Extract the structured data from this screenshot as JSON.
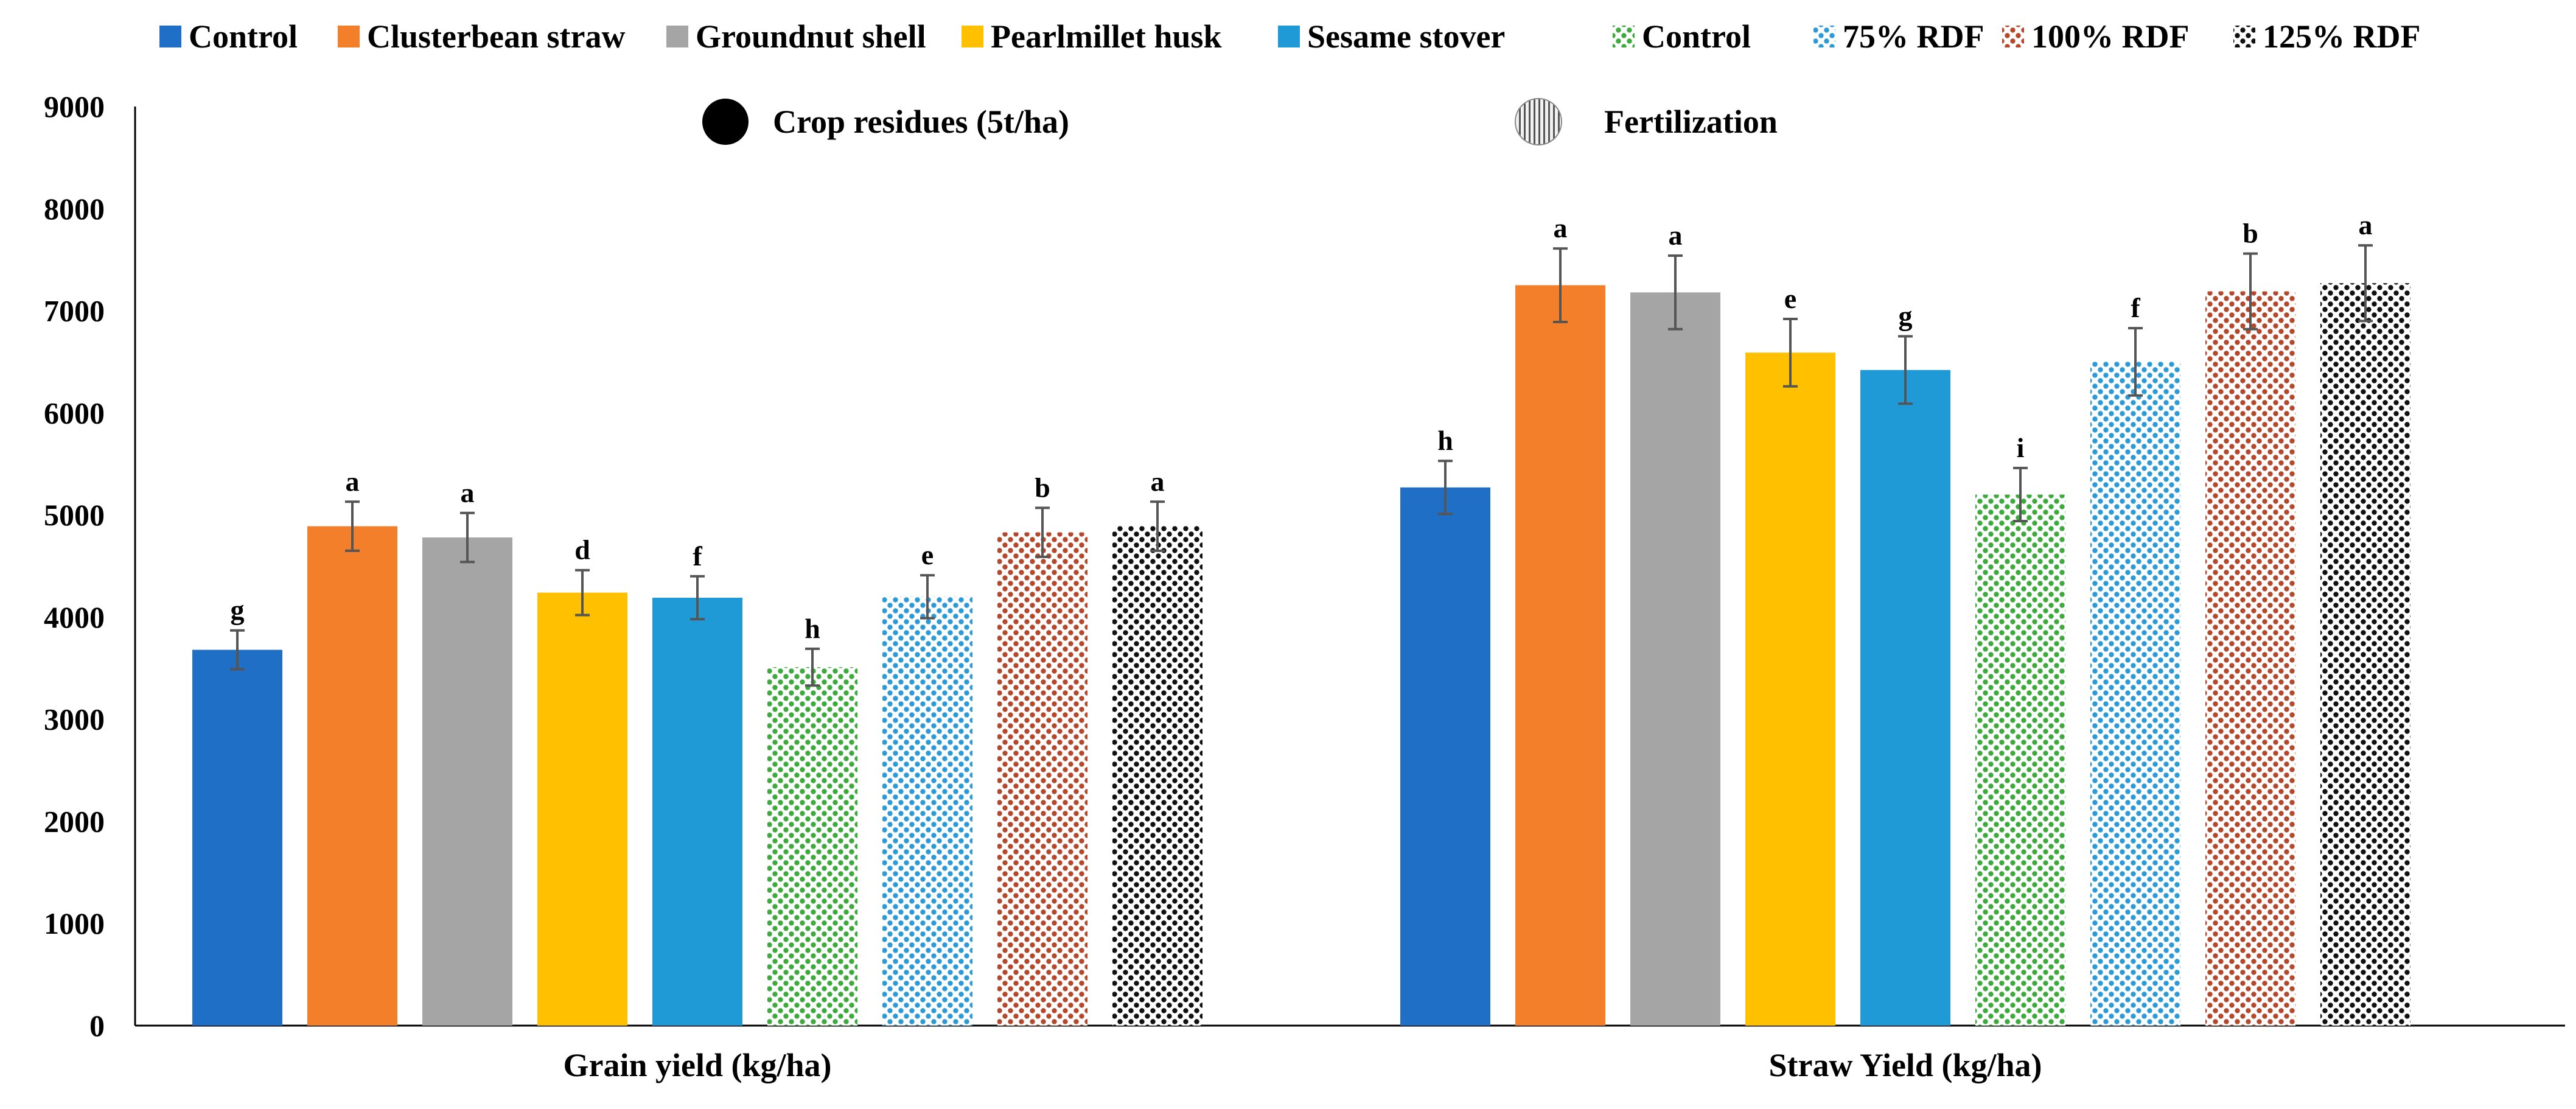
{
  "chart_data": {
    "type": "bar",
    "title": "",
    "xlabel": "",
    "ylabel": "",
    "ylim": [
      0,
      9000
    ],
    "yticks": [
      0,
      1000,
      2000,
      3000,
      4000,
      5000,
      6000,
      7000,
      8000,
      9000
    ],
    "categories": [
      "Grain yield  (kg/ha)",
      "Straw Yield (kg/ha)"
    ],
    "grid": false,
    "legend_position": "top",
    "series": [
      {
        "name": "Control",
        "group": "Crop residues",
        "color": "#1f6fc6",
        "pattern": "solid",
        "values": [
          3680,
          5270
        ],
        "errors": [
          190,
          260
        ],
        "letters": [
          "g",
          "h"
        ]
      },
      {
        "name": "Clusterbean straw",
        "group": "Crop residues",
        "color": "#f47f2a",
        "pattern": "solid",
        "values": [
          4890,
          7250
        ],
        "errors": [
          240,
          360
        ],
        "letters": [
          "a",
          "a"
        ]
      },
      {
        "name": "Groundnut shell",
        "group": "Crop residues",
        "color": "#a5a5a5",
        "pattern": "solid",
        "values": [
          4780,
          7180
        ],
        "errors": [
          240,
          360
        ],
        "letters": [
          "a",
          "a"
        ]
      },
      {
        "name": "Pearlmillet husk",
        "group": "Crop residues",
        "color": "#ffc000",
        "pattern": "solid",
        "values": [
          4240,
          6590
        ],
        "errors": [
          220,
          330
        ],
        "letters": [
          "d",
          "e"
        ]
      },
      {
        "name": "Sesame stover",
        "group": "Crop residues",
        "color": "#1f9ad6",
        "pattern": "solid",
        "values": [
          4190,
          6420
        ],
        "errors": [
          210,
          330
        ],
        "letters": [
          "f",
          "g"
        ]
      },
      {
        "name": "Control",
        "group": "Fertilization",
        "color": "#3cab3c",
        "pattern": "dots",
        "values": [
          3510,
          5200
        ],
        "errors": [
          180,
          260
        ],
        "letters": [
          "h",
          "i"
        ]
      },
      {
        "name": "75% RDF",
        "group": "Fertilization",
        "color": "#2a9ad9",
        "pattern": "dots",
        "values": [
          4200,
          6500
        ],
        "errors": [
          210,
          330
        ],
        "letters": [
          "e",
          "f"
        ]
      },
      {
        "name": "100% RDF",
        "group": "Fertilization",
        "color": "#b5472a",
        "pattern": "dots",
        "values": [
          4830,
          7190
        ],
        "errors": [
          240,
          370
        ],
        "letters": [
          "b",
          "b"
        ]
      },
      {
        "name": "125% RDF",
        "group": "Fertilization",
        "color": "#111111",
        "pattern": "dots",
        "values": [
          4890,
          7270
        ],
        "errors": [
          240,
          370
        ],
        "letters": [
          "a",
          "a"
        ]
      }
    ],
    "inner_legend": [
      {
        "label": "Crop residues (5t/ha)",
        "marker": "solid-circle"
      },
      {
        "label": "Fertilization",
        "marker": "hatched-circle"
      }
    ]
  }
}
